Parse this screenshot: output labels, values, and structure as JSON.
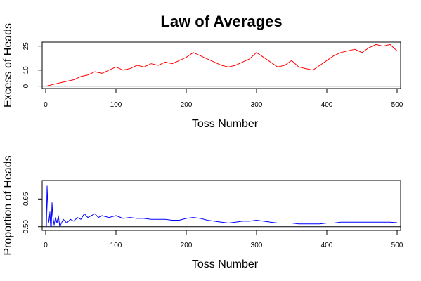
{
  "title": "Law of Averages",
  "chart_data": [
    {
      "type": "line",
      "ylabel": "Excess of Heads",
      "xlabel": "Toss Number",
      "xlim": [
        -5,
        505
      ],
      "ylim": [
        -1.5,
        27.5
      ],
      "xticks": [
        0,
        100,
        200,
        300,
        400,
        500
      ],
      "yticks": [
        0,
        10,
        25
      ],
      "reference_line": 0,
      "color": "#ff0000",
      "x": [
        1,
        10,
        20,
        30,
        40,
        50,
        60,
        70,
        80,
        90,
        100,
        110,
        120,
        130,
        140,
        150,
        160,
        170,
        180,
        190,
        200,
        210,
        220,
        230,
        240,
        250,
        260,
        270,
        280,
        290,
        300,
        310,
        320,
        330,
        340,
        350,
        360,
        370,
        380,
        390,
        400,
        410,
        420,
        430,
        440,
        450,
        460,
        470,
        480,
        490,
        500
      ],
      "y": [
        0,
        1,
        2,
        3,
        4,
        6,
        7,
        9,
        8,
        10,
        12,
        10,
        11,
        13,
        12,
        14,
        13,
        15,
        14,
        16,
        18,
        21,
        19,
        17,
        15,
        13,
        12,
        13,
        15,
        17,
        21,
        18,
        15,
        12,
        13,
        16,
        12,
        11,
        10,
        13,
        16,
        19,
        21,
        22,
        23,
        21,
        24,
        26,
        25,
        26,
        22
      ]
    },
    {
      "type": "line",
      "ylabel": "Proportion of Heads",
      "xlabel": "Toss Number",
      "xlim": [
        -5,
        505
      ],
      "ylim": [
        0.48,
        0.75
      ],
      "xticks": [
        0,
        100,
        200,
        300,
        400,
        500
      ],
      "yticks": [
        0.5,
        0.65
      ],
      "reference_line": 0.5,
      "color": "#0000ff",
      "x": [
        1,
        2,
        3,
        4,
        5,
        6,
        7,
        8,
        9,
        10,
        12,
        14,
        16,
        18,
        20,
        25,
        30,
        35,
        40,
        45,
        50,
        55,
        60,
        65,
        70,
        75,
        80,
        90,
        100,
        110,
        120,
        130,
        140,
        150,
        160,
        170,
        180,
        190,
        200,
        210,
        220,
        230,
        240,
        250,
        260,
        270,
        280,
        290,
        300,
        310,
        320,
        330,
        340,
        350,
        360,
        370,
        380,
        390,
        400,
        410,
        420,
        430,
        440,
        450,
        460,
        470,
        480,
        490,
        500
      ],
      "y": [
        0.5,
        0.72,
        0.62,
        0.52,
        0.54,
        0.58,
        0.5,
        0.5,
        0.63,
        0.56,
        0.51,
        0.55,
        0.52,
        0.56,
        0.5,
        0.54,
        0.52,
        0.54,
        0.53,
        0.55,
        0.54,
        0.57,
        0.55,
        0.56,
        0.57,
        0.55,
        0.56,
        0.55,
        0.56,
        0.545,
        0.55,
        0.545,
        0.545,
        0.54,
        0.54,
        0.54,
        0.535,
        0.535,
        0.545,
        0.55,
        0.545,
        0.535,
        0.53,
        0.525,
        0.52,
        0.525,
        0.53,
        0.53,
        0.535,
        0.53,
        0.525,
        0.52,
        0.52,
        0.52,
        0.515,
        0.515,
        0.515,
        0.515,
        0.52,
        0.52,
        0.525,
        0.525,
        0.525,
        0.525,
        0.525,
        0.525,
        0.525,
        0.525,
        0.522
      ]
    }
  ]
}
